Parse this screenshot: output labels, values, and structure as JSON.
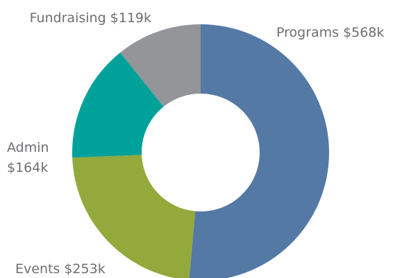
{
  "chart_data": {
    "type": "donut",
    "categories": [
      "Programs",
      "Events",
      "Admin",
      "Fundraising"
    ],
    "values": [
      568,
      253,
      164,
      119
    ],
    "value_labels": [
      "$568k",
      "$253k",
      "$164k",
      "$119k"
    ],
    "colors": [
      "#5479a5",
      "#93a93c",
      "#00a19a",
      "#939598"
    ]
  }
}
